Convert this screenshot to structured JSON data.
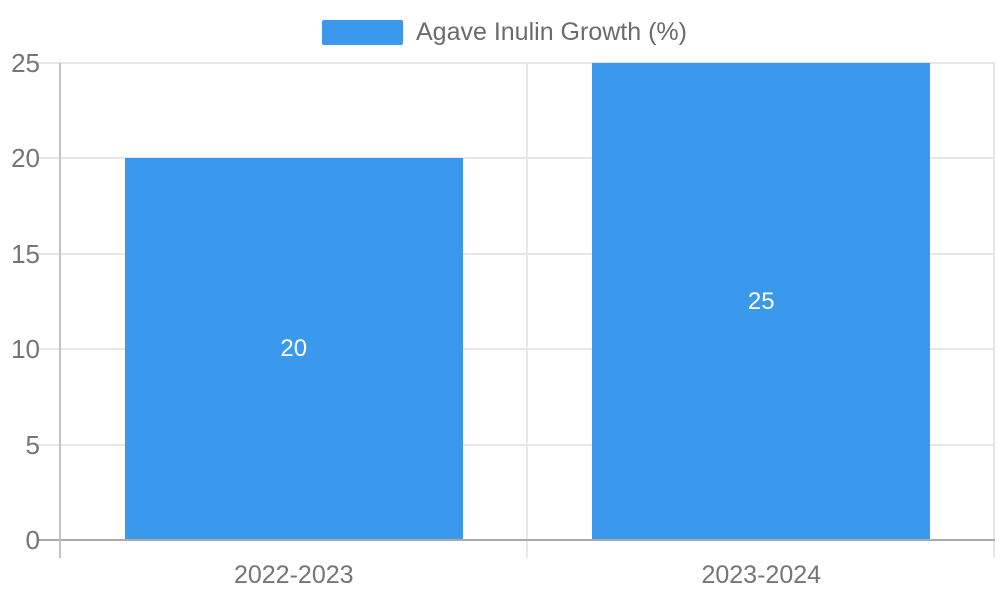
{
  "chart_data": {
    "type": "bar",
    "title": "",
    "legend": "Agave Inulin Growth (%)",
    "legend_position": "top-center",
    "categories": [
      "2022-2023",
      "2023-2024"
    ],
    "series": [
      {
        "name": "Agave Inulin Growth (%)",
        "values": [
          20,
          25
        ]
      }
    ],
    "data_labels": [
      "20",
      "25"
    ],
    "xlabel": "",
    "ylabel": "",
    "ylim": [
      0,
      25
    ],
    "yticks": [
      0,
      5,
      10,
      15,
      20,
      25
    ],
    "grid": true,
    "colors": {
      "bar": "#3B99ED",
      "data_label": "#FFFFFF",
      "axis_label": "#757575",
      "legend_label": "#6B6B6B",
      "grid_line": "#E7E7E7",
      "axis_line": "#ABABAB",
      "y_axis_line": "#C4C4C4",
      "background": "#FFFFFF"
    }
  }
}
